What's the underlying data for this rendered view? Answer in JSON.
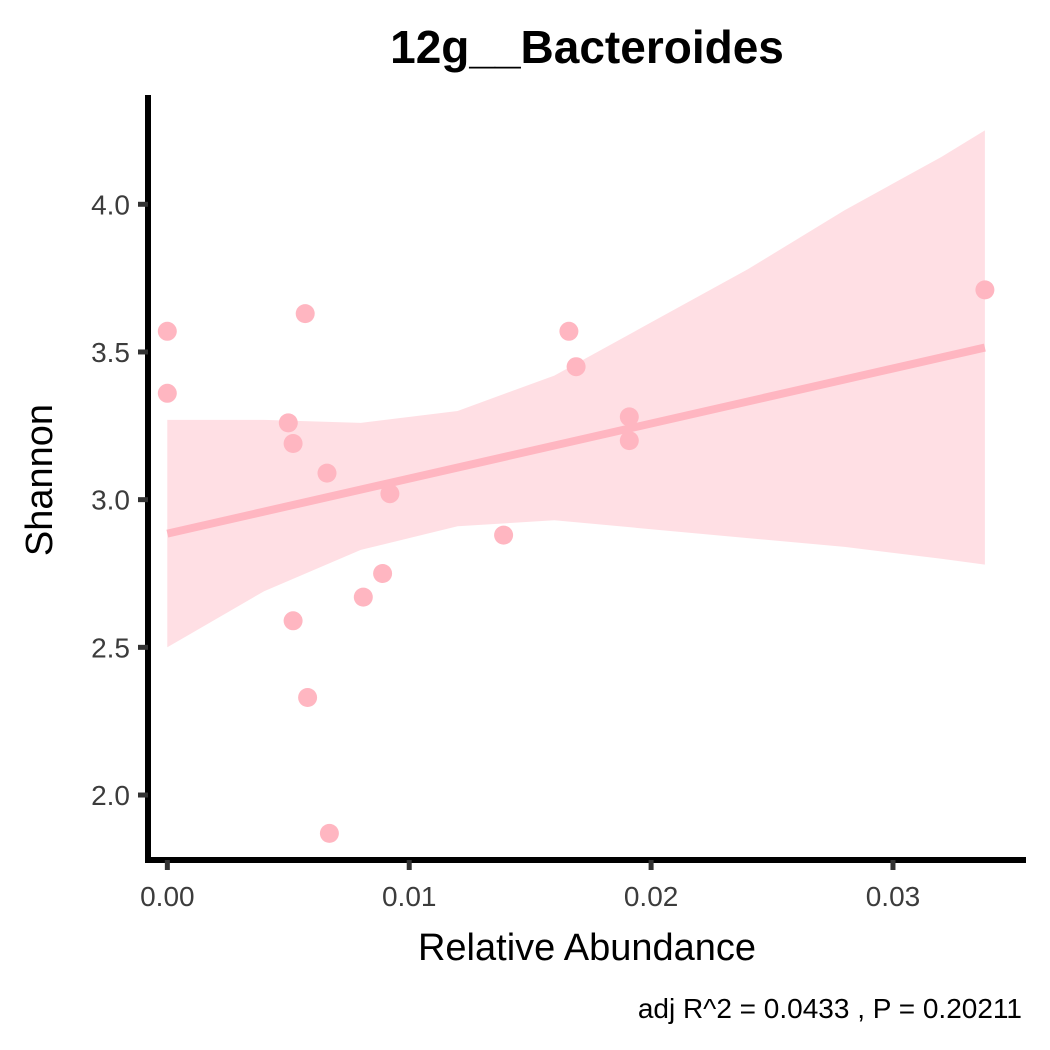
{
  "chart_data": {
    "type": "scatter",
    "title": "12g__Bacteroides",
    "xlabel": "Relative Abundance",
    "ylabel": "Shannon",
    "caption": "adj R^2 =  0.0433 , P = 0.20211",
    "xlim": [
      -0.0008,
      0.0355
    ],
    "ylim": [
      1.78,
      4.37
    ],
    "x_ticks": [
      0.0,
      0.01,
      0.02,
      0.03
    ],
    "x_tick_labels": [
      "0.00",
      "0.01",
      "0.02",
      "0.03"
    ],
    "y_ticks": [
      2.0,
      2.5,
      3.0,
      3.5,
      4.0
    ],
    "y_tick_labels": [
      "2.0",
      "2.5",
      "3.0",
      "3.5",
      "4.0"
    ],
    "grid": false,
    "colors": {
      "points": "#ffb6c1",
      "line": "#ffb6c1",
      "band": "#ffdde3"
    },
    "points": [
      {
        "x": 0.0,
        "y": 3.57
      },
      {
        "x": 0.0,
        "y": 3.36
      },
      {
        "x": 0.005,
        "y": 3.26
      },
      {
        "x": 0.0052,
        "y": 3.19
      },
      {
        "x": 0.0052,
        "y": 2.59
      },
      {
        "x": 0.0057,
        "y": 3.63
      },
      {
        "x": 0.0058,
        "y": 2.33
      },
      {
        "x": 0.0066,
        "y": 3.09
      },
      {
        "x": 0.0067,
        "y": 1.87
      },
      {
        "x": 0.0081,
        "y": 2.67
      },
      {
        "x": 0.0089,
        "y": 2.75
      },
      {
        "x": 0.0092,
        "y": 3.02
      },
      {
        "x": 0.0139,
        "y": 2.88
      },
      {
        "x": 0.0166,
        "y": 3.57
      },
      {
        "x": 0.0169,
        "y": 3.45
      },
      {
        "x": 0.0191,
        "y": 3.28
      },
      {
        "x": 0.0191,
        "y": 3.2
      },
      {
        "x": 0.0338,
        "y": 3.71
      }
    ],
    "fit": {
      "x": [
        0.0,
        0.0338
      ],
      "y": [
        2.885,
        3.515
      ]
    },
    "ci_band": {
      "x": [
        0.0,
        0.004,
        0.008,
        0.012,
        0.016,
        0.02,
        0.024,
        0.028,
        0.032,
        0.0338
      ],
      "upper": [
        3.27,
        3.27,
        3.26,
        3.3,
        3.42,
        3.6,
        3.78,
        3.98,
        4.16,
        4.25
      ],
      "lower": [
        2.5,
        2.69,
        2.83,
        2.91,
        2.93,
        2.9,
        2.87,
        2.84,
        2.8,
        2.78
      ]
    }
  }
}
